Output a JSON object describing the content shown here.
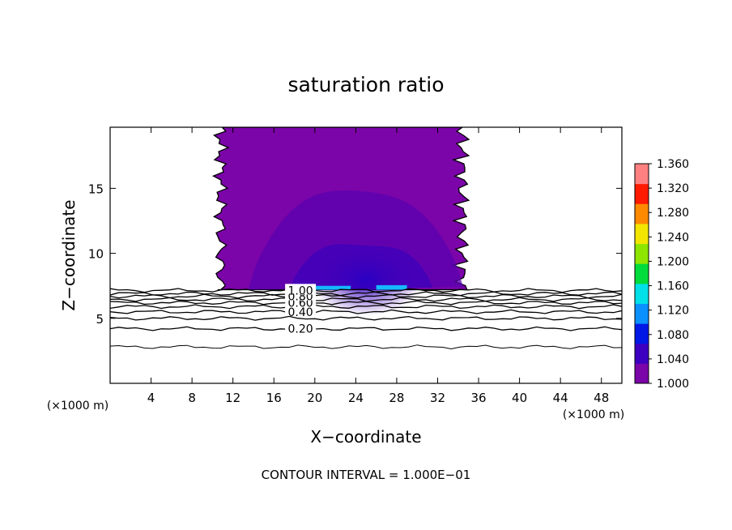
{
  "chart_data": {
    "type": "heatmap",
    "title": "saturation ratio",
    "xlabel": "X−coordinate",
    "ylabel": "Z−coordinate",
    "x_unit_label": "(×1000 m)",
    "y_unit_label": "(×1000 m)",
    "footer": "CONTOUR INTERVAL = 1.000E−01",
    "xlim": [
      0,
      50
    ],
    "ylim": [
      0,
      19.7
    ],
    "x_ticks": [
      4,
      8,
      12,
      16,
      20,
      24,
      28,
      32,
      36,
      40,
      44,
      48
    ],
    "x_tick_labels": [
      "4",
      "8",
      "12",
      "16",
      "20",
      "24",
      "28",
      "32",
      "36",
      "40",
      "44",
      "48"
    ],
    "y_ticks": [
      5,
      10,
      15
    ],
    "y_tick_labels": [
      "5",
      "10",
      "15"
    ],
    "colorbar": {
      "min": 1.0,
      "max": 1.36,
      "tick_values": [
        1.0,
        1.04,
        1.08,
        1.12,
        1.16,
        1.2,
        1.24,
        1.28,
        1.32,
        1.36
      ],
      "tick_labels": [
        "1.000",
        "1.040",
        "1.080",
        "1.120",
        "1.160",
        "1.200",
        "1.240",
        "1.280",
        "1.320",
        "1.360"
      ],
      "colors": [
        "#7a05a8",
        "#3d00c0",
        "#0018e6",
        "#0a90ff",
        "#00e0e8",
        "#00dc3c",
        "#8ee600",
        "#f2e600",
        "#ff8a00",
        "#ff1a00",
        "#ff8080"
      ]
    },
    "supersaturated_region": {
      "x_range": [
        10.3,
        35.0
      ],
      "z_range": [
        7.2,
        19.7
      ],
      "base_value": 1.01,
      "max_value": 1.12
    },
    "contour_lines": [
      {
        "value": 0.2,
        "label": "0.20",
        "z": 4.2
      },
      {
        "value": 0.3,
        "label": "",
        "z": 5.0
      },
      {
        "value": 0.4,
        "label": "0.40",
        "z": 5.5
      },
      {
        "value": 0.5,
        "label": "",
        "z": 5.9
      },
      {
        "value": 0.6,
        "label": "0.60",
        "z": 6.2
      },
      {
        "value": 0.7,
        "label": "",
        "z": 6.45
      },
      {
        "value": 0.8,
        "label": "0.80",
        "z": 6.7
      },
      {
        "value": 0.9,
        "label": "",
        "z": 6.9
      },
      {
        "value": 1.0,
        "label": "1.00",
        "z": 7.15
      }
    ],
    "lowest_contour_z": 2.8
  }
}
